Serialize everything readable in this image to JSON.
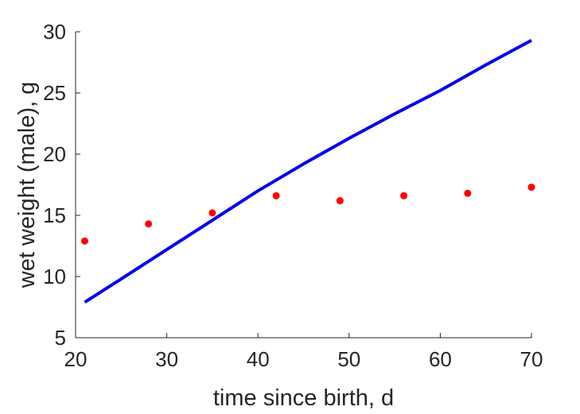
{
  "chart_data": {
    "type": "line",
    "xlabel": "time since birth, d",
    "ylabel": "wet weight (male), g",
    "xlim": [
      20,
      70
    ],
    "ylim": [
      5,
      30
    ],
    "xticks": [
      "20",
      "30",
      "40",
      "50",
      "60",
      "70"
    ],
    "yticks": [
      "5",
      "10",
      "15",
      "20",
      "25",
      "30"
    ],
    "grid": false,
    "series": [
      {
        "kind": "scatter",
        "color": "#ff0000",
        "x": [
          21,
          28,
          35,
          42,
          49,
          56,
          63,
          70
        ],
        "y": [
          12.9,
          14.3,
          15.2,
          16.6,
          16.2,
          16.6,
          16.8,
          17.3
        ]
      },
      {
        "kind": "line",
        "color": "#0000ee",
        "x": [
          21,
          25,
          30,
          35,
          40,
          45,
          50,
          55,
          60,
          65,
          70
        ],
        "y": [
          7.9,
          9.8,
          12.2,
          14.6,
          17.0,
          19.2,
          21.3,
          23.3,
          25.2,
          27.3,
          29.3
        ]
      }
    ]
  }
}
